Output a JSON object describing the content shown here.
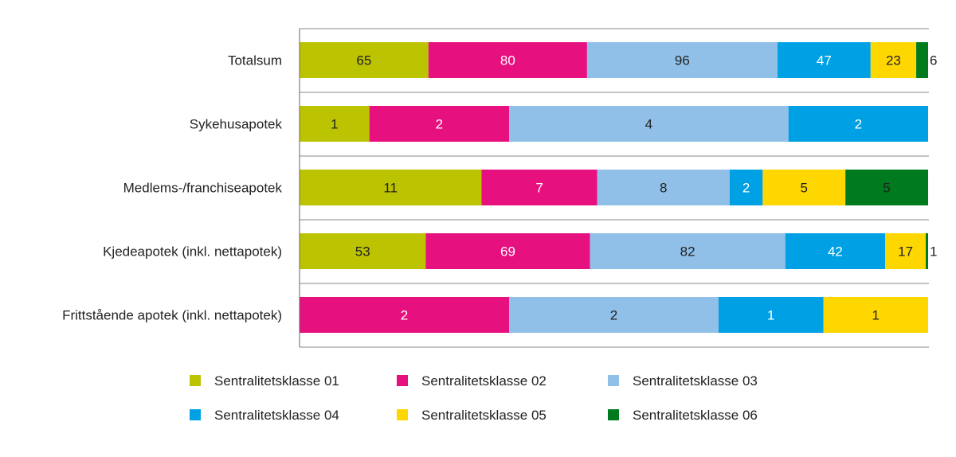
{
  "chart_data": {
    "type": "bar",
    "orientation": "horizontal",
    "stacking": "percent",
    "categories": [
      "Totalsum",
      "Sykehusapotek",
      "Medlems-/franchiseapotek",
      "Kjedeapotek (inkl. nettapotek)",
      "Frittstående apotek (inkl. nettapotek)"
    ],
    "series": [
      {
        "name": "Sentralitetsklasse 01",
        "color": "#bcc300",
        "label_color": "#222222",
        "values": [
          65,
          1,
          11,
          53,
          0
        ]
      },
      {
        "name": "Sentralitetsklasse 02",
        "color": "#e6117f",
        "label_color": "#ffffff",
        "values": [
          80,
          2,
          7,
          69,
          2
        ]
      },
      {
        "name": "Sentralitetsklasse 03",
        "color": "#90c0e8",
        "label_color": "#222222",
        "values": [
          96,
          4,
          8,
          82,
          2
        ]
      },
      {
        "name": "Sentralitetsklasse 04",
        "color": "#00a1e4",
        "label_color": "#ffffff",
        "values": [
          47,
          2,
          2,
          42,
          1
        ]
      },
      {
        "name": "Sentralitetsklasse 05",
        "color": "#ffd700",
        "label_color": "#222222",
        "values": [
          23,
          0,
          5,
          17,
          1
        ]
      },
      {
        "name": "Sentralitetsklasse 06",
        "color": "#007a1e",
        "label_color": "#222222",
        "values": [
          6,
          0,
          5,
          1,
          0
        ]
      }
    ],
    "title": "",
    "xlabel": "",
    "ylabel": "",
    "grid": false,
    "legend": "bottom",
    "data_labels": true
  }
}
